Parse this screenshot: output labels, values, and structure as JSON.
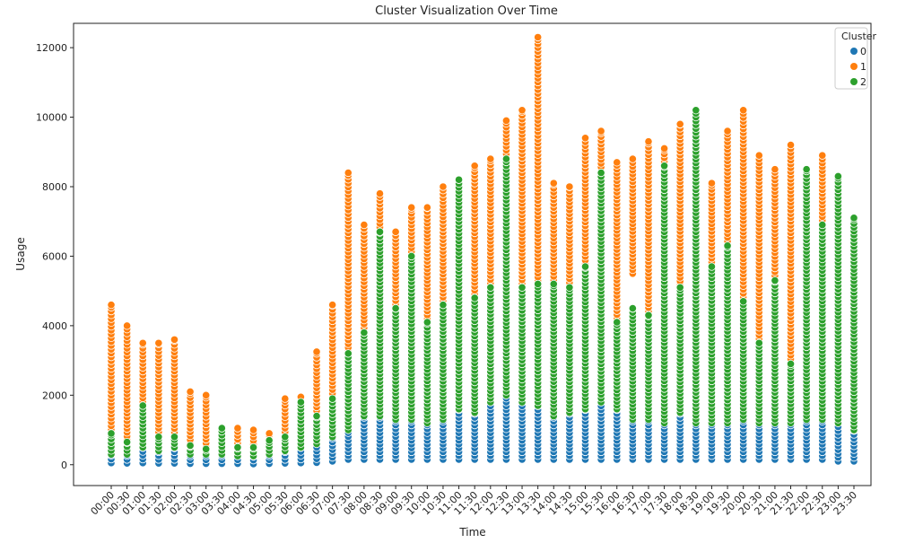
{
  "chart_data": {
    "type": "scatter",
    "title": "Cluster Visualization Over Time",
    "xlabel": "Time",
    "ylabel": "Usage",
    "ylim": [
      -600,
      12700
    ],
    "yticks": [
      0,
      2000,
      4000,
      6000,
      8000,
      10000,
      12000
    ],
    "grid": false,
    "legend": {
      "title": "Cluster",
      "placement": "top-right",
      "entries": [
        "0",
        "1",
        "2"
      ]
    },
    "colors": {
      "0": "#1f77b4",
      "1": "#ff7f0e",
      "2": "#2ca02c"
    },
    "categories": [
      "00:00",
      "00:30",
      "01:00",
      "01:30",
      "02:00",
      "02:30",
      "03:00",
      "03:30",
      "04:00",
      "04:30",
      "05:00",
      "05:30",
      "06:00",
      "06:30",
      "07:00",
      "07:30",
      "08:00",
      "08:30",
      "09:00",
      "09:30",
      "10:00",
      "10:30",
      "11:00",
      "11:30",
      "12:00",
      "12:30",
      "13:00",
      "13:30",
      "14:00",
      "14:30",
      "15:00",
      "15:30",
      "16:00",
      "16:30",
      "17:00",
      "17:30",
      "18:00",
      "18:30",
      "19:00",
      "19:30",
      "20:00",
      "20:30",
      "21:00",
      "21:30",
      "22:00",
      "22:30",
      "23:00",
      "23:30"
    ],
    "series": [
      {
        "name": "0",
        "ranges": [
          [
            50,
            800
          ],
          [
            40,
            550
          ],
          [
            50,
            1700
          ],
          [
            40,
            450
          ],
          [
            40,
            500
          ],
          [
            30,
            400
          ],
          [
            30,
            350
          ],
          [
            30,
            300
          ],
          [
            30,
            300
          ],
          [
            20,
            250
          ],
          [
            30,
            300
          ],
          [
            40,
            400
          ],
          [
            50,
            500
          ],
          [
            60,
            650
          ],
          [
            100,
            900
          ],
          [
            150,
            1200
          ],
          [
            150,
            1500
          ],
          [
            150,
            1500
          ],
          [
            150,
            1300
          ],
          [
            150,
            1400
          ],
          [
            150,
            1300
          ],
          [
            150,
            1400
          ],
          [
            150,
            1700
          ],
          [
            150,
            1500
          ],
          [
            150,
            1800
          ],
          [
            150,
            2000
          ],
          [
            150,
            1900
          ],
          [
            150,
            1800
          ],
          [
            150,
            1500
          ],
          [
            150,
            1600
          ],
          [
            150,
            1600
          ],
          [
            150,
            1900
          ],
          [
            150,
            1700
          ],
          [
            150,
            1400
          ],
          [
            150,
            1400
          ],
          [
            150,
            1300
          ],
          [
            150,
            1700
          ],
          [
            150,
            1300
          ],
          [
            150,
            1300
          ],
          [
            150,
            1300
          ],
          [
            150,
            1400
          ],
          [
            150,
            1300
          ],
          [
            150,
            1300
          ],
          [
            150,
            1300
          ],
          [
            150,
            1500
          ],
          [
            150,
            1400
          ],
          [
            100,
            6100
          ],
          [
            100,
            1000
          ]
        ]
      },
      {
        "name": "1",
        "ranges": [
          [
            900,
            4600
          ],
          [
            600,
            4000
          ],
          [
            1700,
            3500
          ],
          [
            500,
            3500
          ],
          [
            600,
            3600
          ],
          [
            500,
            2100
          ],
          [
            400,
            2000
          ],
          [
            300,
            800
          ],
          [
            400,
            1050
          ],
          [
            250,
            1000
          ],
          [
            300,
            900
          ],
          [
            500,
            1900
          ],
          [
            700,
            1950
          ],
          [
            1000,
            3250
          ],
          [
            1500,
            4600
          ],
          [
            2600,
            8400
          ],
          [
            3500,
            6900
          ],
          [
            6500,
            7800
          ],
          [
            4500,
            6700
          ],
          [
            5800,
            7400
          ],
          [
            4200,
            7400
          ],
          [
            4600,
            8000
          ],
          [
            6000,
            7100
          ],
          [
            4800,
            8600
          ],
          [
            5000,
            8800
          ],
          [
            8500,
            9900
          ],
          [
            5100,
            10200
          ],
          [
            3200,
            12300
          ],
          [
            5200,
            8100
          ],
          [
            3700,
            8000
          ],
          [
            5000,
            9400
          ],
          [
            7900,
            9600
          ],
          [
            4100,
            8700
          ],
          [
            5500,
            8800
          ],
          [
            3200,
            9300
          ],
          [
            3000,
            9100
          ],
          [
            4400,
            9800
          ],
          [
            8400,
            9400
          ],
          [
            3300,
            8100
          ],
          [
            5000,
            9600
          ],
          [
            4600,
            10200
          ],
          [
            3400,
            8900
          ],
          [
            5000,
            8500
          ],
          [
            2600,
            9200
          ],
          [
            7600,
            8300
          ],
          [
            2300,
            8900
          ],
          [
            1500,
            5000
          ],
          [
            4100,
            5300
          ]
        ]
      },
      {
        "name": "2",
        "ranges": [
          [
            300,
            900
          ],
          [
            300,
            650
          ],
          [
            500,
            1700
          ],
          [
            400,
            800
          ],
          [
            500,
            800
          ],
          [
            300,
            550
          ],
          [
            300,
            450
          ],
          [
            300,
            1050
          ],
          [
            250,
            500
          ],
          [
            250,
            500
          ],
          [
            300,
            700
          ],
          [
            400,
            800
          ],
          [
            500,
            1800
          ],
          [
            600,
            1400
          ],
          [
            800,
            1900
          ],
          [
            1000,
            3200
          ],
          [
            1400,
            3800
          ],
          [
            1400,
            6700
          ],
          [
            1300,
            4500
          ],
          [
            1300,
            6000
          ],
          [
            1200,
            4100
          ],
          [
            1300,
            4600
          ],
          [
            1600,
            8200
          ],
          [
            1500,
            4800
          ],
          [
            1800,
            5100
          ],
          [
            2000,
            8800
          ],
          [
            1800,
            5100
          ],
          [
            1700,
            5200
          ],
          [
            1400,
            5200
          ],
          [
            1500,
            5100
          ],
          [
            1600,
            5700
          ],
          [
            1800,
            8400
          ],
          [
            1600,
            4100
          ],
          [
            1300,
            4500
          ],
          [
            1300,
            4300
          ],
          [
            1200,
            8600
          ],
          [
            1500,
            5100
          ],
          [
            1200,
            10200
          ],
          [
            1200,
            5700
          ],
          [
            1200,
            6300
          ],
          [
            1300,
            4700
          ],
          [
            1200,
            3500
          ],
          [
            1200,
            5300
          ],
          [
            1200,
            2900
          ],
          [
            1300,
            8500
          ],
          [
            1300,
            6900
          ],
          [
            1200,
            8300
          ],
          [
            1000,
            7100
          ]
        ]
      }
    ]
  }
}
